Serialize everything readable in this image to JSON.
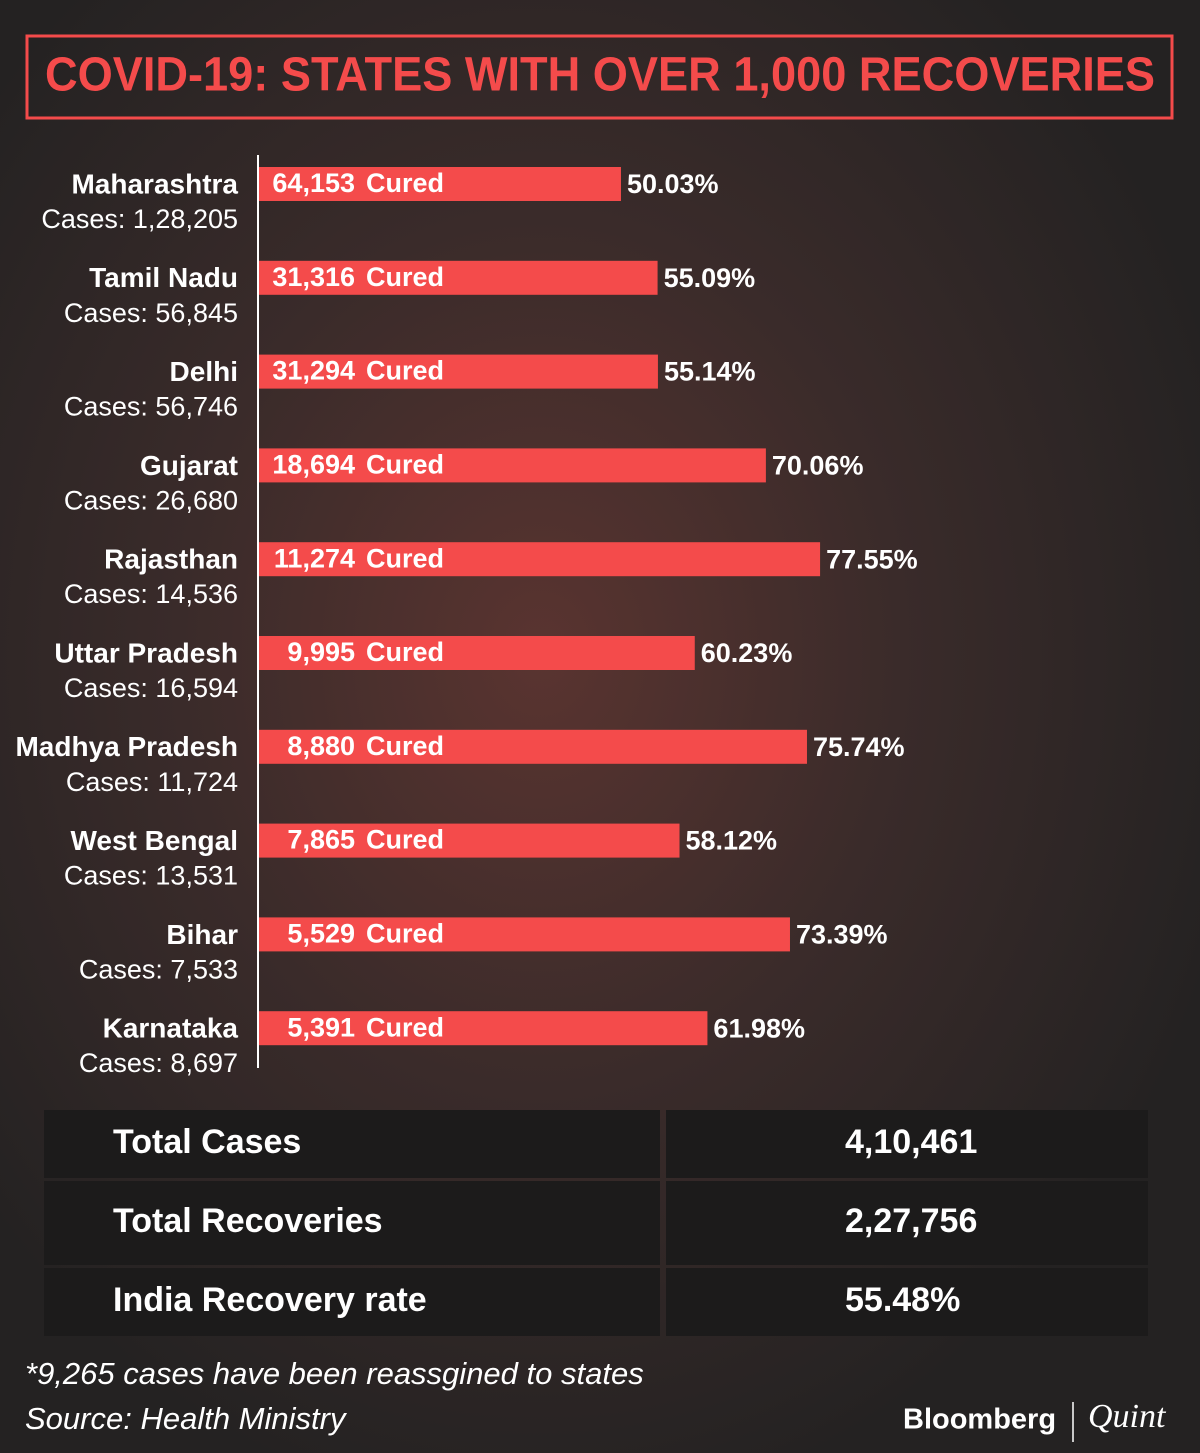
{
  "chart_data": {
    "type": "bar",
    "title": "COVID-19: STATES WITH OVER 1,000 RECOVERIES",
    "categories": [
      "Maharashtra",
      "Tamil Nadu",
      "Delhi",
      "Gujarat",
      "Rajasthan",
      "Uttar Pradesh",
      "Madhya Pradesh",
      "West Bengal",
      "Bihar",
      "Karnataka"
    ],
    "values": [
      50.03,
      55.09,
      55.14,
      70.06,
      77.55,
      60.23,
      75.74,
      58.12,
      73.39,
      61.98
    ],
    "value_labels": [
      "50.03%",
      "55.09%",
      "55.14%",
      "70.06%",
      "77.55%",
      "60.23%",
      "75.74%",
      "58.12%",
      "73.39%",
      "61.98%"
    ],
    "cured": [
      64153,
      31316,
      31294,
      18694,
      11274,
      9995,
      8880,
      7865,
      5529,
      5391
    ],
    "cured_labels": [
      "64,153",
      "31,316",
      "31,294",
      "18,694",
      "11,274",
      "9,995",
      "8,880",
      "7,865",
      "5,529",
      "5,391"
    ],
    "cured_suffix": "Cured",
    "cases_prefix": "Cases:",
    "cases": [
      128205,
      56845,
      56746,
      26680,
      14536,
      16594,
      11724,
      13531,
      7533,
      8697
    ],
    "cases_labels": [
      "1,28,205",
      "56,845",
      "56,746",
      "26,680",
      "14,536",
      "16,594",
      "11,724",
      "13,531",
      "7,533",
      "8,697"
    ],
    "color": "#f44b4b"
  },
  "summary": {
    "rows": [
      [
        "Total Cases",
        "4,10,461"
      ],
      [
        "Total Recoveries",
        "2,27,756"
      ],
      [
        "India Recovery rate",
        "55.48%"
      ]
    ]
  },
  "footnote": "*9,265 cases have been reassgined to states",
  "source": "Source: Health Ministry",
  "brand": {
    "left": "Bloomberg",
    "right": "Quint"
  }
}
